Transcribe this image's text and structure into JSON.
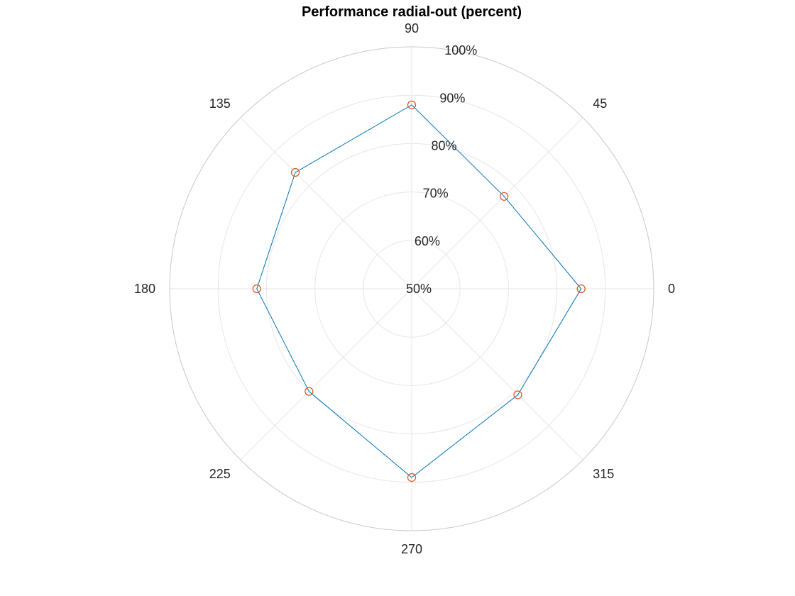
{
  "chart_data": {
    "type": "polar-line",
    "title": "Performance radial-out (percent)",
    "theta_ticks": [
      0,
      45,
      90,
      135,
      180,
      225,
      270,
      315
    ],
    "theta_tick_labels": [
      "0",
      "45",
      "90",
      "135",
      "180",
      "225",
      "270",
      "315"
    ],
    "r_lim": [
      50,
      100
    ],
    "r_ticks": [
      50,
      60,
      70,
      80,
      90,
      100
    ],
    "r_tick_labels": [
      "50%",
      "60%",
      "70%",
      "80%",
      "90%",
      "100%"
    ],
    "grid": true,
    "series": [
      {
        "theta": [
          0,
          45,
          90,
          135,
          180,
          225,
          270,
          315
        ],
        "r": [
          85,
          77,
          88,
          84,
          82,
          80,
          89,
          81
        ],
        "line_color": "#0072BD",
        "marker": "circle",
        "marker_color": "#D95319"
      }
    ]
  }
}
